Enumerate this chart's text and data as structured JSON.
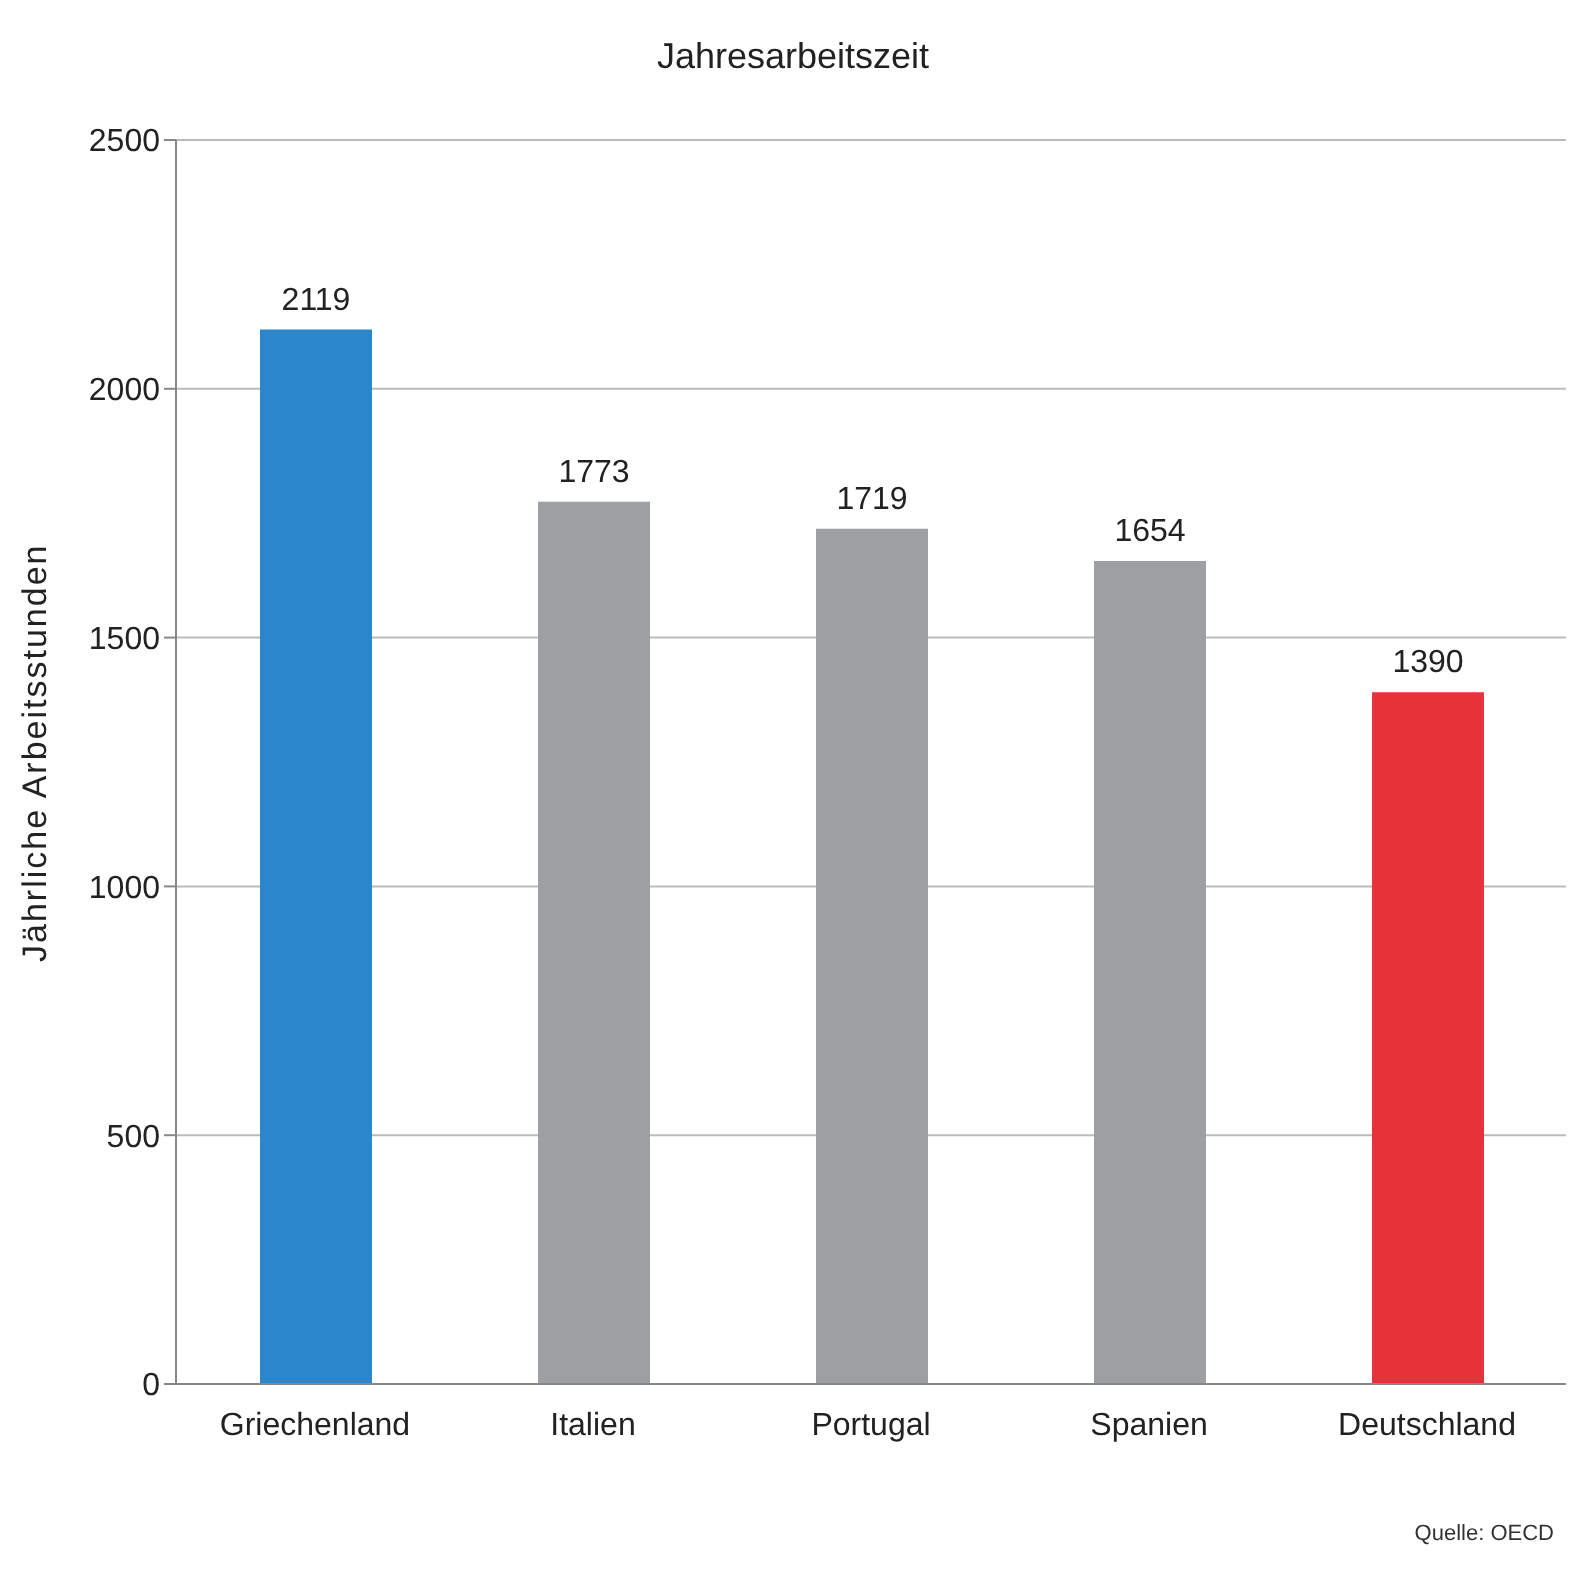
{
  "chart_data": {
    "type": "bar",
    "title": "Jahresarbeitszeit",
    "ylabel": "Jährliche Arbeitsstunden",
    "categories": [
      "Griechenland",
      "Italien",
      "Portugal",
      "Spanien",
      "Deutschland"
    ],
    "values": [
      2119,
      1773,
      1719,
      1654,
      1390
    ],
    "colors": [
      "#2b86cc",
      "#9d9fa2",
      "#9d9fa2",
      "#9d9fa2",
      "#e8323a"
    ],
    "ylim": [
      0,
      2500
    ],
    "yticks": [
      0,
      500,
      1000,
      1500,
      2000,
      2500
    ],
    "grid": "y",
    "data_labels": true,
    "annotations": [
      "Quelle: OECD"
    ]
  }
}
